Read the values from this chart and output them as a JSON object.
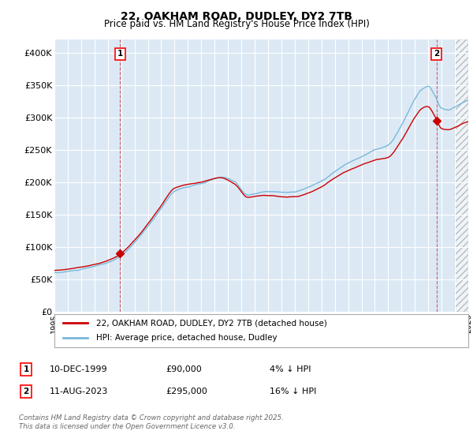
{
  "title": "22, OAKHAM ROAD, DUDLEY, DY2 7TB",
  "subtitle": "Price paid vs. HM Land Registry's House Price Index (HPI)",
  "ylim": [
    0,
    420000
  ],
  "yticks": [
    0,
    50000,
    100000,
    150000,
    200000,
    250000,
    300000,
    350000,
    400000
  ],
  "ytick_labels": [
    "£0",
    "£50K",
    "£100K",
    "£150K",
    "£200K",
    "£250K",
    "£300K",
    "£350K",
    "£400K"
  ],
  "hpi_color": "#7ab8d9",
  "price_color": "#cc0000",
  "background_color": "#dce9f5",
  "grid_color": "#ffffff",
  "annotation1_date": "10-DEC-1999",
  "annotation1_price": "£90,000",
  "annotation1_hpi": "4% ↓ HPI",
  "annotation2_date": "11-AUG-2023",
  "annotation2_price": "£295,000",
  "annotation2_hpi": "16% ↓ HPI",
  "legend_label1": "22, OAKHAM ROAD, DUDLEY, DY2 7TB (detached house)",
  "legend_label2": "HPI: Average price, detached house, Dudley",
  "footnote": "Contains HM Land Registry data © Crown copyright and database right 2025.\nThis data is licensed under the Open Government Licence v3.0.",
  "sale1_year": 1999.92,
  "sale1_price": 90000,
  "sale2_year": 2023.61,
  "sale2_price": 295000,
  "xmin": 1995.0,
  "xmax": 2026.0,
  "future_start": 2025.0
}
